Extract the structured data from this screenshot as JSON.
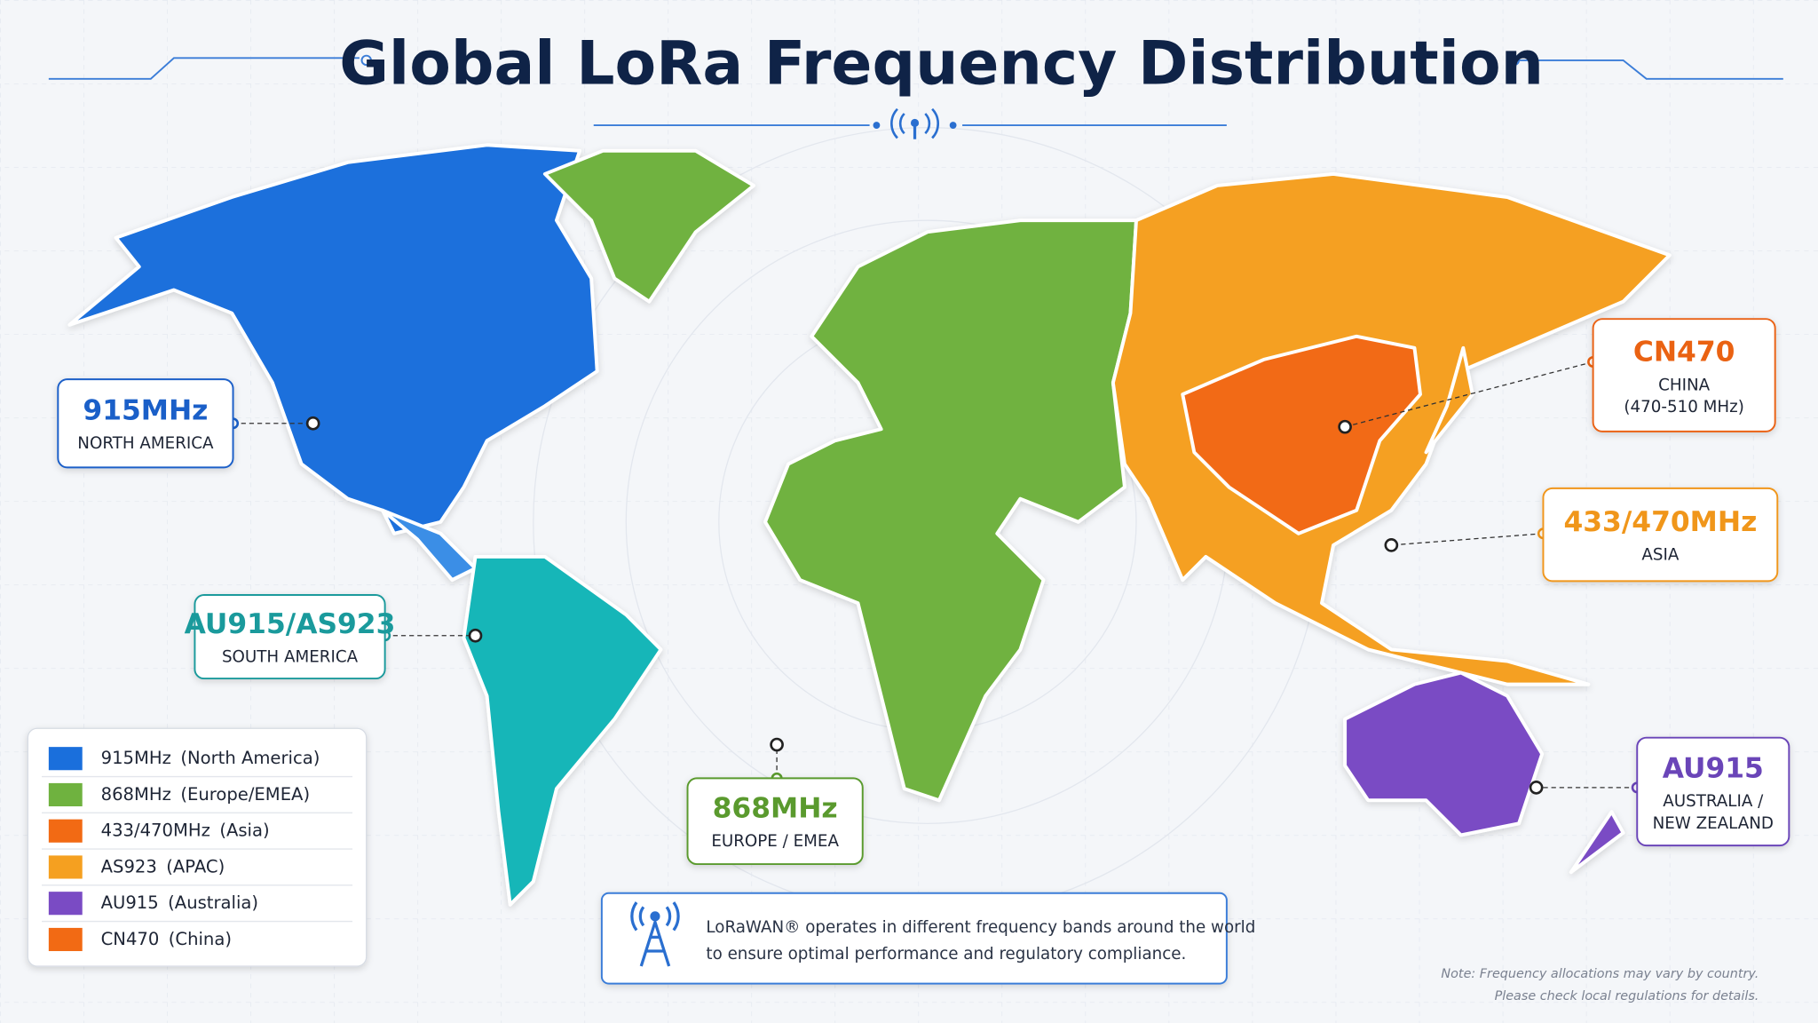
{
  "title": "Global LoRa Frequency Distribution",
  "callouts": [
    {
      "band": "915MHz",
      "lines": [
        "NORTH AMERICA"
      ],
      "color": "#1a5fc8"
    },
    {
      "band": "AU915/AS923",
      "lines": [
        "SOUTH AMERICA"
      ],
      "color": "#1a9a9c"
    },
    {
      "band": "868MHz",
      "lines": [
        "EUROPE / EMEA"
      ],
      "color": "#5a9a2e"
    },
    {
      "band": "CN470",
      "lines": [
        "CHINA",
        "(470-510 MHz)"
      ],
      "color": "#ea6212"
    },
    {
      "band": "433/470MHz",
      "lines": [
        "ASIA"
      ],
      "color": "#f0961a"
    },
    {
      "band": "AU915",
      "lines": [
        "AUSTRALIA /",
        "NEW ZEALAND"
      ],
      "color": "#6a45b8"
    }
  ],
  "legend": [
    {
      "band": "915MHz",
      "region": "(North America)",
      "color": "#1a6fdc"
    },
    {
      "band": "868MHz",
      "region": "(Europe/EMEA)",
      "color": "#6fb23f"
    },
    {
      "band": "433/470MHz",
      "region": "(Asia)",
      "color": "#f26a14"
    },
    {
      "band": "AS923",
      "region": "(APAC)",
      "color": "#f5a020"
    },
    {
      "band": "AU915",
      "region": "(Australia)",
      "color": "#7a4bc4"
    },
    {
      "band": "CN470",
      "region": "(China)",
      "color": "#f26a14"
    }
  ],
  "info": {
    "lines": [
      "LoRaWAN® operates in different frequency bands around the world",
      "to ensure optimal performance and regulatory compliance."
    ]
  },
  "note": {
    "lines": [
      "Note: Frequency allocations may vary by country.",
      "Please check local regulations for details."
    ]
  }
}
